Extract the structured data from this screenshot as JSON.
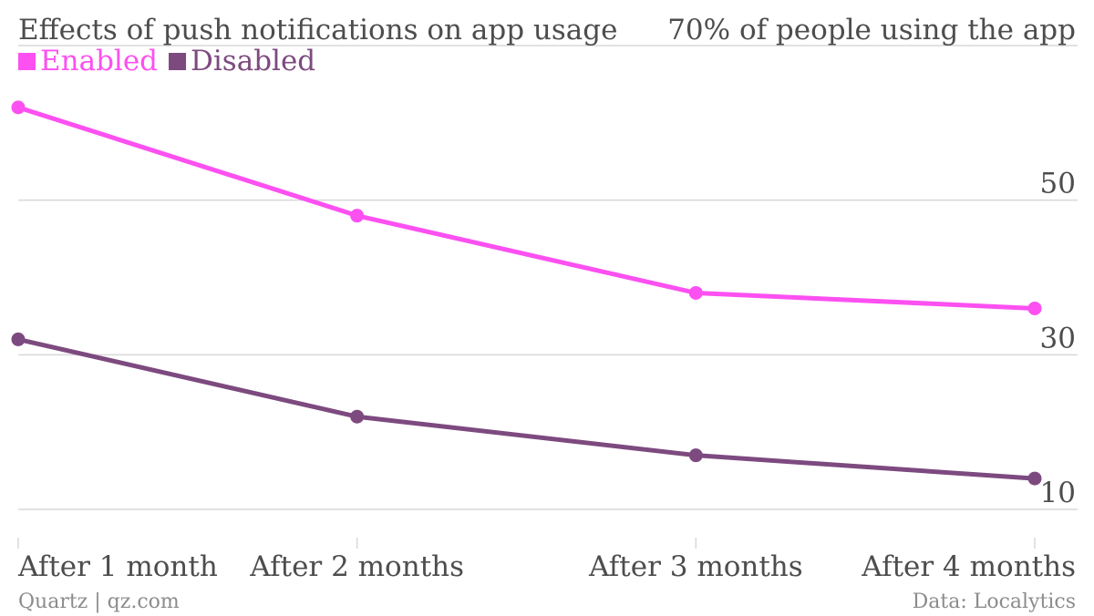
{
  "chart_data": {
    "type": "line",
    "title": "Effects of push notifications on app usage",
    "ylabel": "70% of people using the app",
    "categories": [
      "After 1 month",
      "After 2 months",
      "After 3 months",
      "After 4 months"
    ],
    "series": [
      {
        "name": "Enabled",
        "color": "#fc50f1",
        "values": [
          62,
          48,
          38,
          36
        ]
      },
      {
        "name": "Disabled",
        "color": "#7d4a7f",
        "values": [
          32,
          22,
          17,
          14
        ]
      }
    ],
    "ylim": [
      8,
      70
    ],
    "yticks": [
      10,
      30,
      50,
      70
    ],
    "ytick_labels": [
      "10",
      "30",
      "50",
      "70%"
    ],
    "grid": true,
    "legend_position": "top-left"
  },
  "footer": {
    "source_left": "Quartz | qz.com",
    "source_right": "Data: Localytics"
  },
  "colors": {
    "grid": "#d9d9d9",
    "text": "#4d4d4d",
    "muted": "#8c8c8c"
  }
}
